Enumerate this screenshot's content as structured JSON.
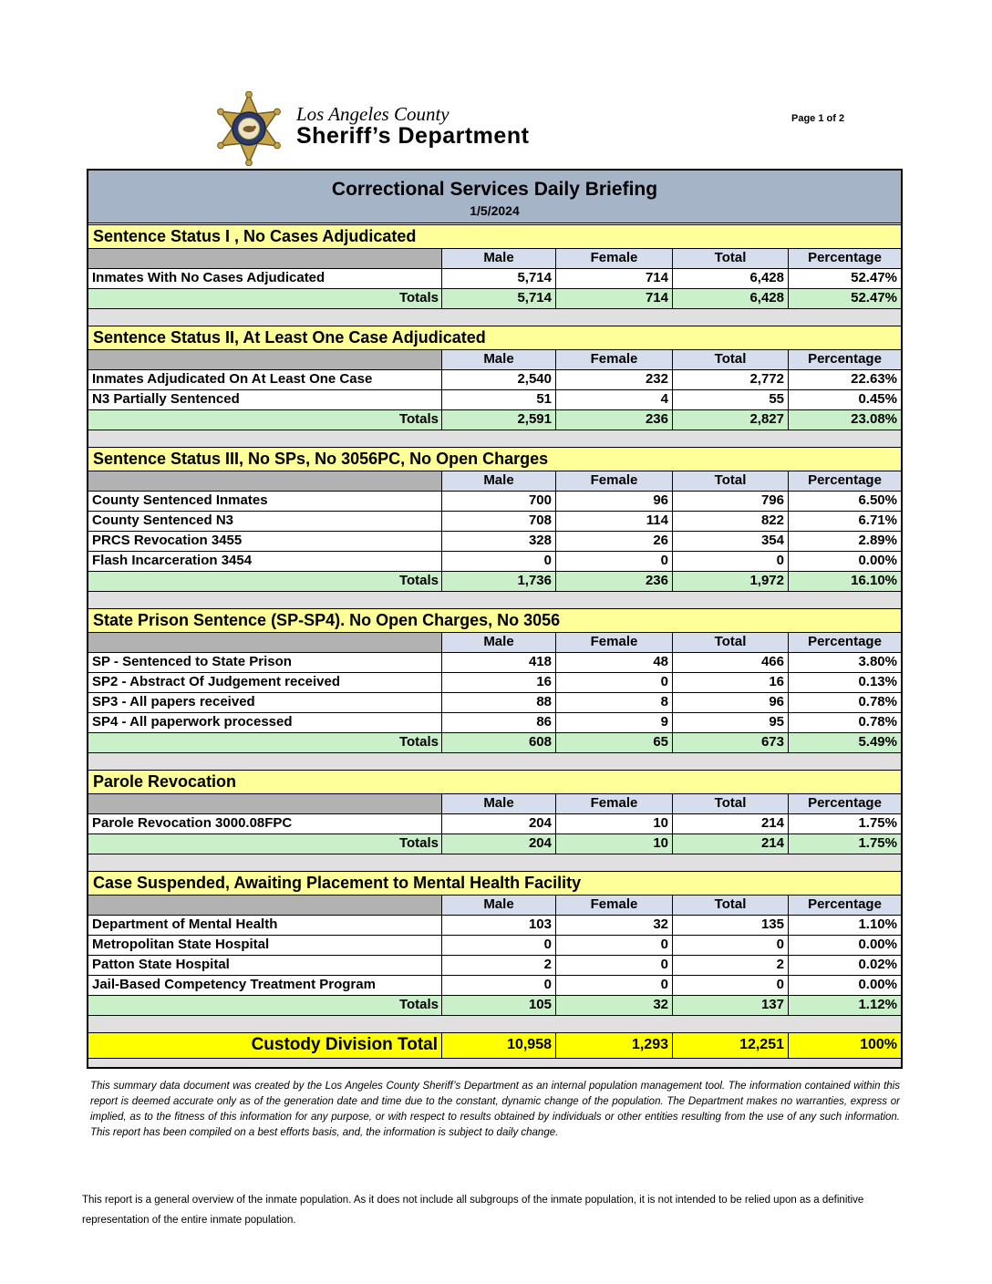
{
  "page": {
    "page_indicator": "Page 1 of 2",
    "logo_line1": "Los Angeles County",
    "logo_line2": "Sheriff’s Department",
    "title": "Correctional Services Daily Briefing",
    "date": "1/5/2024"
  },
  "table": {
    "column_headers": [
      "Male",
      "Female",
      "Total",
      "Percentage"
    ],
    "totals_label": "Totals",
    "sections": [
      {
        "title": "Sentence Status I , No Cases Adjudicated",
        "rows": [
          {
            "label": "Inmates With No Cases Adjudicated",
            "values": [
              "5,714",
              "714",
              "6,428",
              "52.47%"
            ]
          }
        ],
        "totals": [
          "5,714",
          "714",
          "6,428",
          "52.47%"
        ]
      },
      {
        "title": "Sentence Status II, At Least One Case Adjudicated",
        "rows": [
          {
            "label": "Inmates Adjudicated On At Least One Case",
            "values": [
              "2,540",
              "232",
              "2,772",
              "22.63%"
            ]
          },
          {
            "label": "N3 Partially Sentenced",
            "values": [
              "51",
              "4",
              "55",
              "0.45%"
            ]
          }
        ],
        "totals": [
          "2,591",
          "236",
          "2,827",
          "23.08%"
        ]
      },
      {
        "title": "Sentence Status III, No SPs, No 3056PC, No Open Charges",
        "rows": [
          {
            "label": "County Sentenced Inmates",
            "values": [
              "700",
              "96",
              "796",
              "6.50%"
            ]
          },
          {
            "label": "County Sentenced N3",
            "values": [
              "708",
              "114",
              "822",
              "6.71%"
            ]
          },
          {
            "label": "PRCS Revocation 3455",
            "values": [
              "328",
              "26",
              "354",
              "2.89%"
            ]
          },
          {
            "label": "Flash Incarceration 3454",
            "values": [
              "0",
              "0",
              "0",
              "0.00%"
            ]
          }
        ],
        "totals": [
          "1,736",
          "236",
          "1,972",
          "16.10%"
        ]
      },
      {
        "title": "State Prison Sentence (SP-SP4). No Open Charges, No 3056",
        "rows": [
          {
            "label": "SP - Sentenced to State Prison",
            "values": [
              "418",
              "48",
              "466",
              "3.80%"
            ]
          },
          {
            "label": "SP2 - Abstract Of Judgement received",
            "values": [
              "16",
              "0",
              "16",
              "0.13%"
            ]
          },
          {
            "label": "SP3 - All papers received",
            "values": [
              "88",
              "8",
              "96",
              "0.78%"
            ]
          },
          {
            "label": "SP4 - All paperwork processed",
            "values": [
              "86",
              "9",
              "95",
              "0.78%"
            ]
          }
        ],
        "totals": [
          "608",
          "65",
          "673",
          "5.49%"
        ]
      },
      {
        "title": "Parole Revocation",
        "rows": [
          {
            "label": "Parole Revocation 3000.08FPC",
            "values": [
              "204",
              "10",
              "214",
              "1.75%"
            ]
          }
        ],
        "totals": [
          "204",
          "10",
          "214",
          "1.75%"
        ]
      },
      {
        "title": "Case Suspended, Awaiting Placement to Mental Health Facility",
        "rows": [
          {
            "label": "Department of Mental Health",
            "values": [
              "103",
              "32",
              "135",
              "1.10%"
            ]
          },
          {
            "label": "Metropolitan State Hospital",
            "values": [
              "0",
              "0",
              "0",
              "0.00%"
            ]
          },
          {
            "label": "Patton State Hospital",
            "values": [
              "2",
              "0",
              "2",
              "0.02%"
            ]
          },
          {
            "label": "Jail-Based Competency Treatment Program",
            "values": [
              "0",
              "0",
              "0",
              "0.00%"
            ]
          }
        ],
        "totals": [
          "105",
          "32",
          "137",
          "1.12%"
        ]
      }
    ],
    "grand_total": {
      "label": "Custody Division Total",
      "values": [
        "10,958",
        "1,293",
        "12,251",
        "100%"
      ]
    }
  },
  "footer": {
    "disclaimer": "This summary data document was created by the Los Angeles County Sheriff’s Department as an internal population management tool.  The information contained within this report is deemed accurate only as of the generation date and time due to the constant, dynamic change of the population.  The Department makes no warranties, express or implied, as to the fitness of this information for any purpose, or with respect to results obtained by individuals or other entities resulting from the use of any such information.  This report has been compiled on a best efforts basis, and, the information is subject to daily change.",
    "note": "This report is a general overview of the inmate population.  As it does not include all subgroups of the inmate population, it is not intended to be relied upon as a definitive representation of the entire inmate population."
  },
  "colors": {
    "title_bar": "#A6B4C8",
    "section_header": "#FFFF99",
    "column_header": "#D6DEED",
    "header_corner": "#B2B2B2",
    "spacer": "#E0E0E0",
    "totals_row": "#CAF0CA",
    "grand_total_row": "#FFFF00"
  }
}
